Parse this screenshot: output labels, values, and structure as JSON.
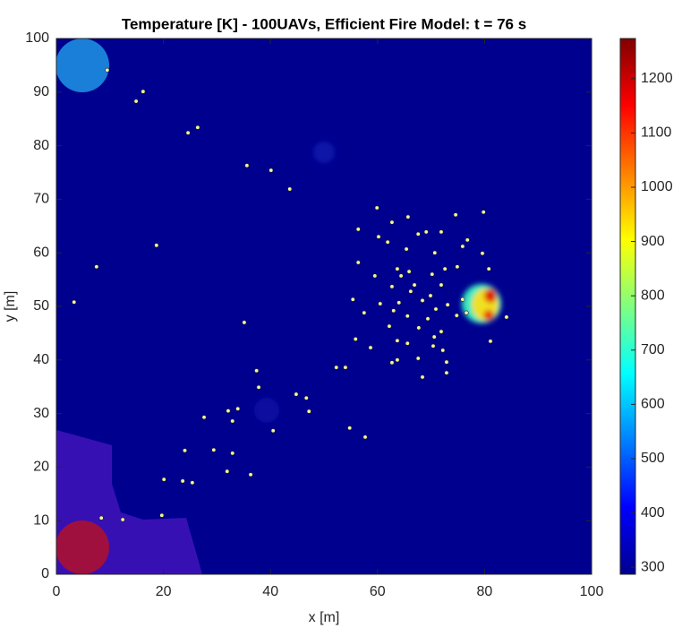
{
  "chart_data": {
    "type": "scatter",
    "title": "Temperature [K] - 100UAVs, Efficient Fire Model: t = 76 s",
    "xlabel": "x [m]",
    "ylabel": "y [m]",
    "xlim": [
      0,
      100
    ],
    "ylim": [
      0,
      100
    ],
    "xticks": [
      0,
      20,
      40,
      60,
      80,
      100
    ],
    "yticks": [
      0,
      10,
      20,
      30,
      40,
      50,
      60,
      70,
      80,
      90,
      100
    ],
    "series": [
      {
        "color": "#f4f49a",
        "x": [
          9.5,
          16.2,
          14.9,
          26.4,
          24.6,
          35.6,
          40.1,
          43.6,
          18.7,
          7.5,
          3.3,
          35.1,
          79.8,
          74.6,
          59.9,
          65.7,
          62.7,
          56.4,
          71.9,
          67.6,
          69.1,
          60.2,
          76.8,
          61.9,
          75.9,
          79.6,
          65.4,
          70.7,
          56.4,
          63.7,
          65.9,
          72.6,
          74.9,
          80.8,
          59.5,
          64.4,
          70.2,
          66.9,
          62.7,
          71.9,
          55.4,
          66.2,
          69.9,
          75.9,
          60.5,
          64.0,
          68.4,
          73.1,
          63.0,
          70.9,
          57.5,
          76.6,
          65.6,
          74.8,
          84.1,
          69.4,
          62.2,
          67.7,
          71.9,
          55.9,
          63.7,
          65.6,
          70.6,
          81.1,
          70.4,
          58.7,
          72.2,
          67.6,
          63.7,
          62.7,
          72.9,
          52.3,
          54.0,
          72.9,
          68.4,
          37.4,
          37.8,
          44.8,
          46.7,
          32.1,
          33.9,
          47.2,
          32.9,
          27.6,
          54.8,
          40.5,
          57.7,
          29.4,
          24.0,
          32.9,
          31.9,
          36.3,
          20.1,
          23.6,
          25.4,
          19.7,
          8.4,
          12.4
        ],
        "y": [
          94.1,
          90.1,
          88.3,
          83.4,
          82.4,
          76.3,
          75.4,
          71.9,
          61.4,
          57.4,
          50.8,
          47.0,
          67.6,
          67.1,
          68.4,
          66.7,
          65.7,
          64.4,
          63.9,
          63.5,
          63.9,
          63.0,
          62.4,
          62.0,
          61.2,
          59.9,
          60.7,
          60.0,
          58.2,
          57.0,
          56.5,
          57.0,
          57.4,
          57.0,
          55.7,
          55.7,
          56.0,
          54.0,
          53.7,
          54.0,
          51.3,
          52.8,
          52.0,
          51.3,
          50.5,
          50.7,
          51.1,
          50.3,
          49.2,
          49.5,
          48.8,
          48.8,
          48.2,
          48.3,
          48.0,
          47.7,
          46.3,
          46.0,
          45.3,
          43.9,
          43.6,
          43.1,
          44.3,
          43.5,
          42.6,
          42.3,
          41.8,
          40.3,
          40.0,
          39.5,
          39.6,
          38.6,
          38.6,
          37.6,
          36.8,
          38.0,
          34.9,
          33.6,
          32.9,
          30.5,
          30.9,
          30.4,
          28.6,
          29.3,
          27.3,
          26.8,
          25.6,
          23.2,
          23.1,
          22.6,
          19.2,
          18.6,
          17.7,
          17.4,
          17.1,
          11.0,
          10.5,
          10.2
        ]
      }
    ],
    "colorbar": {
      "colormap": "jet",
      "lim": [
        287,
        1274
      ],
      "ticks": [
        300,
        400,
        500,
        600,
        700,
        800,
        900,
        1000,
        1100,
        1200
      ]
    }
  }
}
